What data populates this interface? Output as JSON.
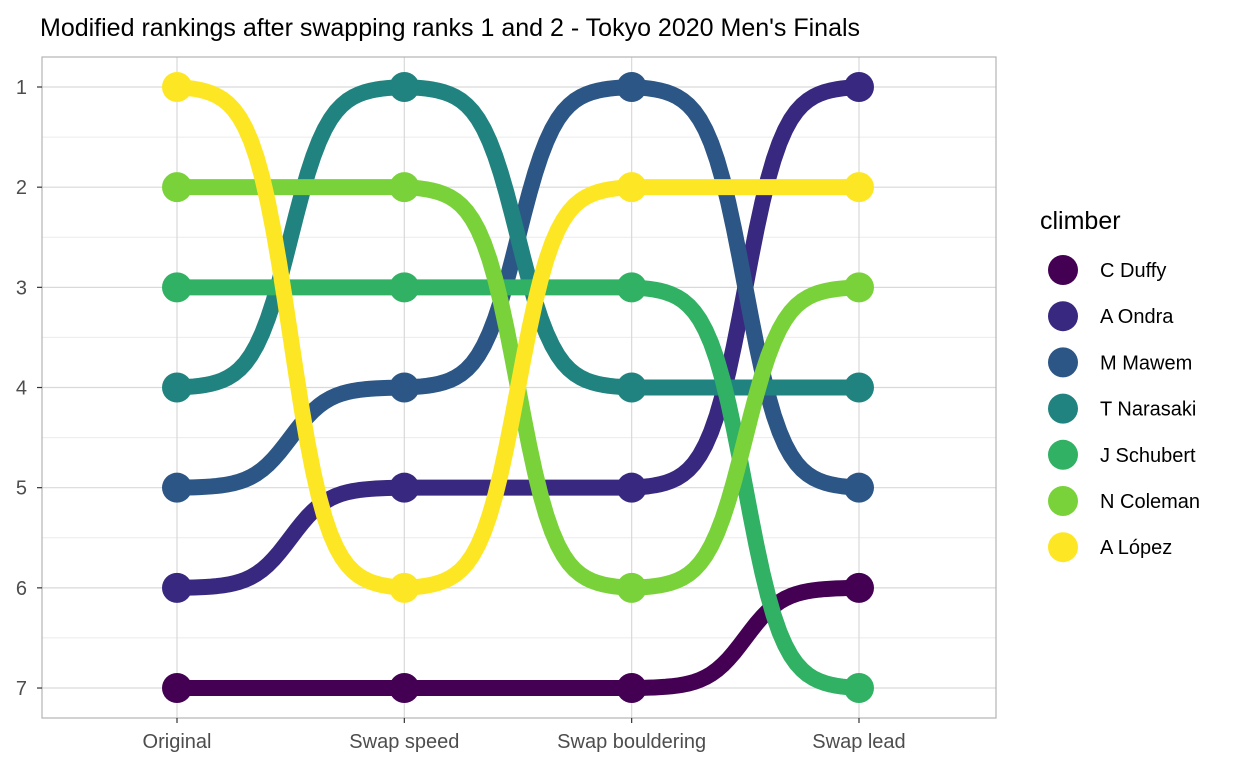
{
  "chart_data": {
    "type": "line",
    "title": "Modified rankings after swapping ranks 1 and 2 - Tokyo 2020 Men's Finals",
    "xlabel": "",
    "ylabel": "",
    "categories": [
      "Original",
      "Swap speed",
      "Swap bouldering",
      "Swap lead"
    ],
    "y_ticks": [
      "1",
      "2",
      "3",
      "4",
      "5",
      "6",
      "7"
    ],
    "ylim": [
      1,
      7
    ],
    "y_reversed": true,
    "grid": true,
    "legend_position": "right",
    "legend_title": "climber",
    "series": [
      {
        "name": "C Duffy",
        "color": "#440154",
        "values": [
          7,
          7,
          7,
          6
        ]
      },
      {
        "name": "A Ondra",
        "color": "#39287F",
        "values": [
          6,
          5,
          5,
          1
        ]
      },
      {
        "name": "M Mawem",
        "color": "#2C5685",
        "values": [
          5,
          4,
          1,
          5
        ]
      },
      {
        "name": "T Narasaki",
        "color": "#21837F",
        "values": [
          4,
          1,
          4,
          4
        ]
      },
      {
        "name": "J Schubert",
        "color": "#30B163",
        "values": [
          3,
          3,
          3,
          7
        ]
      },
      {
        "name": "N Coleman",
        "color": "#7AD23A",
        "values": [
          2,
          2,
          6,
          3
        ]
      },
      {
        "name": "A López",
        "color": "#FDE725",
        "values": [
          1,
          6,
          2,
          2
        ]
      }
    ]
  }
}
